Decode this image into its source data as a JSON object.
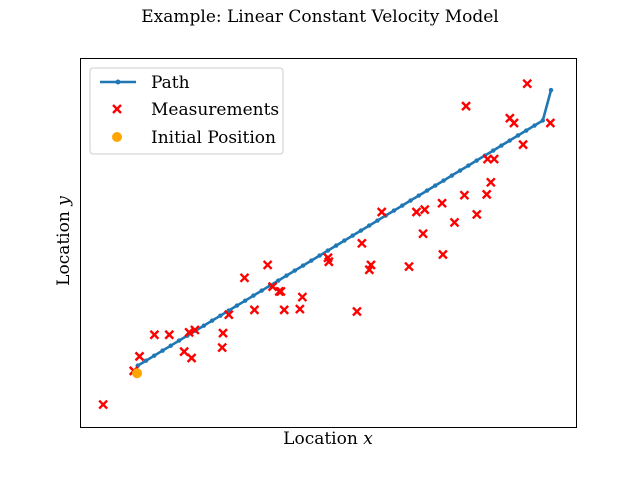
{
  "chart_data": {
    "type": "scatter",
    "title": "Example: Linear Constant Velocity Model",
    "xlabel": "Location",
    "xlabel_var": "x",
    "ylabel": "Location",
    "ylabel_var": "y",
    "xlim": [
      -1,
      59
    ],
    "ylim": [
      -4,
      42
    ],
    "grid": false,
    "show_ticks": false,
    "legend_position": "top-left",
    "colors": {
      "path": "#1f77b4",
      "measurements": "#ff0000",
      "initial": "#ffa500"
    },
    "series": [
      {
        "name": "Path",
        "kind": "line",
        "marker": "dot",
        "x": [
          5.98,
          6.98,
          7.98,
          8.98,
          9.98,
          10.98,
          11.98,
          12.98,
          13.98,
          14.98,
          15.98,
          16.98,
          17.98,
          18.98,
          19.98,
          20.98,
          21.98,
          22.98,
          23.98,
          24.98,
          25.98,
          26.98,
          27.98,
          28.98,
          29.98,
          30.98,
          31.98,
          32.98,
          33.98,
          34.98,
          35.98,
          36.98,
          37.98,
          38.98,
          39.98,
          40.98,
          41.98,
          42.98,
          43.98,
          44.98,
          45.98,
          46.98,
          47.98,
          48.98,
          49.98,
          50.98,
          51.98,
          52.98,
          53.98,
          54.98,
          55.98
        ],
        "y": [
          3.65,
          4.27,
          4.89,
          5.52,
          6.14,
          6.77,
          7.39,
          8.01,
          8.63,
          9.26,
          9.88,
          10.51,
          11.13,
          11.75,
          12.38,
          13.0,
          13.63,
          14.25,
          14.87,
          15.5,
          16.12,
          16.74,
          17.37,
          17.99,
          18.61,
          19.24,
          19.86,
          20.48,
          21.11,
          21.73,
          22.36,
          22.98,
          23.6,
          24.23,
          24.85,
          25.47,
          26.1,
          26.72,
          27.35,
          27.97,
          28.59,
          29.22,
          29.84,
          30.46,
          31.09,
          31.71,
          32.34,
          32.96,
          33.58,
          34.21,
          38.0
        ]
      },
      {
        "name": "Measurements",
        "kind": "scatter",
        "marker": "x",
        "x": [
          1.8,
          5.5,
          6.2,
          8.0,
          9.8,
          11.6,
          12.2,
          12.5,
          12.9,
          16.2,
          16.3,
          17.0,
          18.9,
          20.1,
          21.7,
          22.3,
          23.1,
          23.3,
          23.7,
          25.6,
          25.9,
          29.0,
          29.1,
          32.5,
          33.1,
          34.0,
          34.2,
          35.5,
          38.8,
          39.7,
          40.5,
          40.7,
          42.8,
          42.9,
          44.3,
          45.5,
          45.7,
          47.0,
          48.2,
          48.3,
          48.7,
          49.1,
          51.0,
          51.5,
          52.6,
          53.1,
          55.9
        ],
        "y": [
          -1.2,
          3.0,
          4.8,
          7.5,
          7.5,
          5.4,
          7.8,
          4.6,
          8.1,
          5.9,
          7.7,
          10.0,
          14.6,
          10.6,
          16.2,
          13.5,
          12.9,
          12.9,
          10.6,
          10.7,
          12.2,
          17.1,
          16.6,
          10.4,
          18.9,
          15.6,
          16.2,
          22.8,
          16.0,
          22.8,
          20.1,
          23.1,
          23.9,
          17.5,
          21.5,
          24.9,
          36.0,
          22.5,
          25.0,
          29.4,
          26.5,
          29.4,
          34.5,
          33.9,
          31.2,
          38.8,
          33.9
        ]
      },
      {
        "name": "Initial Position",
        "kind": "scatter",
        "marker": "circle",
        "x": [
          5.9
        ],
        "y": [
          2.7
        ]
      }
    ]
  }
}
